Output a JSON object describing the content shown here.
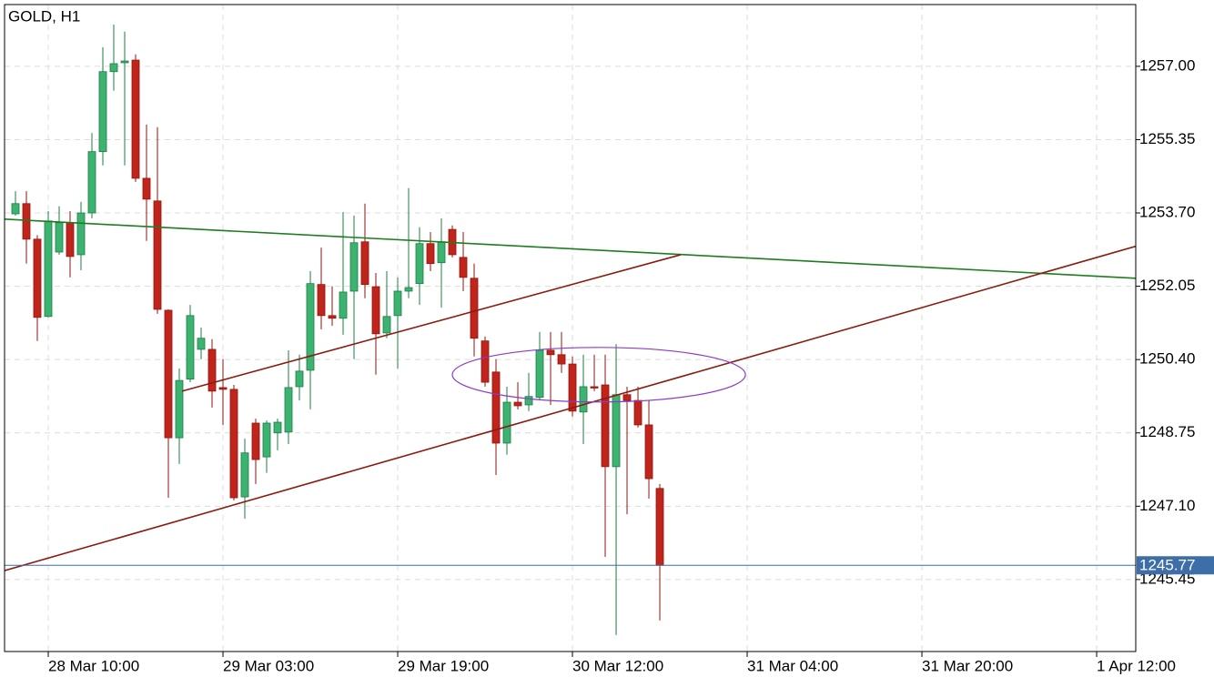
{
  "chart_data": {
    "type": "candlestick",
    "title": "GOLD, H1",
    "x": [
      0,
      1,
      2,
      3,
      4,
      5,
      6,
      7,
      8,
      9,
      10,
      11,
      12,
      13,
      14,
      15,
      16,
      17,
      18,
      19,
      20,
      21,
      22,
      23,
      24,
      25,
      26,
      27,
      28,
      29,
      30,
      31,
      32,
      33,
      34,
      35,
      36,
      37,
      38,
      39,
      40,
      41,
      42,
      43,
      44,
      45,
      46,
      47,
      48,
      49,
      50,
      51,
      52,
      53,
      54,
      55,
      56,
      57,
      58,
      59
    ],
    "open": [
      1253.68,
      1253.91,
      1253.11,
      1251.37,
      1252.82,
      1253.48,
      1252.76,
      1253.7,
      1255.08,
      1256.88,
      1257.08,
      1257.14,
      1254.48,
      1253.97,
      1251.51,
      1248.64,
      1249.96,
      1250.63,
      1250.63,
      1249.77,
      1249.73,
      1247.31,
      1248.97,
      1248.21,
      1248.75,
      1248.77,
      1249.79,
      1250.16,
      1252.09,
      1251.39,
      1251.33,
      1251.94,
      1253.05,
      1252.04,
      1251.0,
      1251.39,
      1251.94,
      1252.11,
      1253.01,
      1252.58,
      1253.33,
      1252.7,
      1252.23,
      1250.82,
      1250.12,
      1248.52,
      1249.44,
      1249.38,
      1249.55,
      1250.61,
      1250.51,
      1250.3,
      1249.22,
      1249.79,
      1249.83,
      1247.99,
      1249.61,
      1249.48,
      1248.93,
      1247.5
    ],
    "high": [
      1254.19,
      1254.19,
      1253.2,
      1253.74,
      1253.85,
      1253.74,
      1253.95,
      1255.5,
      1257.43,
      1257.94,
      1257.78,
      1257.27,
      1255.69,
      1255.63,
      1251.53,
      1250.2,
      1251.63,
      1251.12,
      1250.86,
      1250.41,
      1249.83,
      1248.62,
      1249.07,
      1249.03,
      1249.07,
      1250.61,
      1250.51,
      1252.39,
      1252.92,
      1252.05,
      1253.72,
      1253.64,
      1253.91,
      1252.35,
      1252.39,
      1252.25,
      1254.26,
      1253.38,
      1253.27,
      1253.58,
      1253.42,
      1253.27,
      1252.56,
      1250.92,
      1250.41,
      1249.79,
      1249.89,
      1250.1,
      1251.02,
      1251.02,
      1251.02,
      1250.47,
      1250.51,
      1250.51,
      1250.51,
      1250.75,
      1249.79,
      1249.79,
      1249.48,
      1247.6
    ],
    "low": [
      1253.64,
      1252.56,
      1250.82,
      1251.35,
      1252.76,
      1252.25,
      1252.41,
      1253.58,
      1254.77,
      1256.45,
      1254.77,
      1254.4,
      1253.07,
      1251.43,
      1247.29,
      1248.05,
      1249.89,
      1250.41,
      1249.32,
      1248.93,
      1247.23,
      1246.82,
      1247.6,
      1247.85,
      1248.36,
      1248.5,
      1249.48,
      1249.28,
      1251.08,
      1251.16,
      1250.96,
      1250.41,
      1251.78,
      1250.06,
      1250.88,
      1250.2,
      1251.78,
      1251.63,
      1252.39,
      1251.57,
      1252.7,
      1251.94,
      1250.47,
      1249.79,
      1247.8,
      1248.26,
      1249.28,
      1249.24,
      1249.48,
      1249.38,
      1250.1,
      1249.12,
      1248.5,
      1249.69,
      1245.96,
      1244.2,
      1246.92,
      1248.87,
      1247.27,
      1244.53
    ],
    "close": [
      1253.91,
      1253.11,
      1251.35,
      1253.52,
      1253.48,
      1252.72,
      1253.7,
      1255.08,
      1256.88,
      1257.06,
      1257.12,
      1254.48,
      1254.01,
      1251.53,
      1248.64,
      1249.93,
      1251.39,
      1250.88,
      1249.69,
      1249.73,
      1247.29,
      1248.3,
      1248.15,
      1248.97,
      1248.99,
      1249.77,
      1250.14,
      1252.11,
      1251.39,
      1251.33,
      1251.92,
      1253.03,
      1252.09,
      1250.98,
      1251.37,
      1251.94,
      1252.02,
      1253.01,
      1252.56,
      1253.05,
      1252.76,
      1252.25,
      1250.88,
      1249.89,
      1248.52,
      1249.44,
      1249.36,
      1249.57,
      1250.61,
      1250.51,
      1250.3,
      1249.24,
      1249.79,
      1249.77,
      1247.99,
      1249.61,
      1249.48,
      1248.93,
      1247.72,
      1245.77
    ],
    "up_color": "#3cb371",
    "down_color": "#c0241a",
    "xlim": [
      -1,
      102.58
    ],
    "ylim": [
      1243.83,
      1258.39
    ],
    "xticks": [
      {
        "value": 3,
        "label": "28 Mar 10:00"
      },
      {
        "value": 19,
        "label": "29 Mar 03:00"
      },
      {
        "value": 35,
        "label": "29 Mar 19:00"
      },
      {
        "value": 51,
        "label": "30 Mar 12:00"
      },
      {
        "value": 67,
        "label": "31 Mar 04:00"
      },
      {
        "value": 83,
        "label": "31 Mar 20:00"
      },
      {
        "value": 99,
        "label": "1 Apr 12:00"
      }
    ],
    "yticks": [
      {
        "value": 1257.0,
        "label": "1257.00"
      },
      {
        "value": 1255.35,
        "label": "1255.35"
      },
      {
        "value": 1253.7,
        "label": "1253.70"
      },
      {
        "value": 1252.05,
        "label": "1252.05"
      },
      {
        "value": 1250.4,
        "label": "1250.40"
      },
      {
        "value": 1248.75,
        "label": "1248.75"
      },
      {
        "value": 1247.1,
        "label": "1247.10"
      },
      {
        "value": 1245.45,
        "label": "1245.45"
      }
    ],
    "grid": true,
    "trendlines": [
      {
        "color": "#1e7d1e",
        "x": [
          -1,
          102.58
        ],
        "y": [
          1253.56,
          1252.23
        ]
      },
      {
        "color": "#8b1a10",
        "x": [
          -1,
          102.58
        ],
        "y": [
          1245.65,
          1252.95
        ]
      },
      {
        "color": "#8b1a10",
        "x": [
          15.25,
          60.92
        ],
        "y": [
          1249.69,
          1252.76
        ]
      }
    ],
    "ellipse": {
      "color": "#8a3cc8",
      "cx": 53.42,
      "cy": 1250.06,
      "rx": 13.42,
      "ry": 0.614
    },
    "last_price": {
      "value": 1245.77,
      "label": "1245.77",
      "color": "#3d6ea8"
    }
  }
}
